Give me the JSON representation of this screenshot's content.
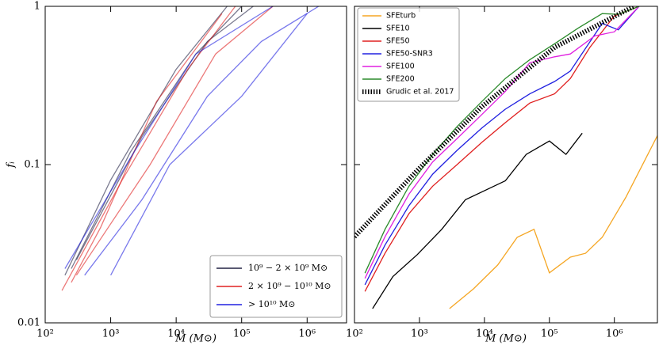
{
  "chart_data": [
    {
      "type": "line",
      "xlabel": "M (M⊙)",
      "ylabel": "fᵢ",
      "xlog": true,
      "ylog": true,
      "xlim": [
        100,
        4000000
      ],
      "ylim": [
        0.01,
        1
      ],
      "xticks": [
        {
          "value": 100,
          "label": "10²"
        },
        {
          "value": 1000,
          "label": "10³"
        },
        {
          "value": 10000,
          "label": "10⁴"
        },
        {
          "value": 100000,
          "label": "10⁵"
        },
        {
          "value": 1000000,
          "label": "10⁶"
        }
      ],
      "yticks": [
        0.01,
        0.1,
        1
      ],
      "legend": "lower right",
      "groups": [
        {
          "name": "10⁹ − 2 × 10⁹ M⊙",
          "color": "#222244",
          "lines": [
            {
              "x": [
                200,
                1000,
                10000,
                60000
              ],
              "values": [
                0.02,
                0.08,
                0.4,
                1
              ]
            },
            {
              "x": [
                250,
                2000,
                20000,
                100000
              ],
              "values": [
                0.022,
                0.12,
                0.5,
                1
              ]
            },
            {
              "x": [
                300,
                3000,
                30000,
                150000
              ],
              "values": [
                0.025,
                0.15,
                0.6,
                1
              ]
            }
          ]
        },
        {
          "name": "2 × 10⁹ − 10¹⁰ M⊙",
          "color": "#e02020",
          "lines": [
            {
              "x": [
                180,
                1500,
                15000,
                80000
              ],
              "values": [
                0.016,
                0.08,
                0.4,
                1
              ]
            },
            {
              "x": [
                300,
                4000,
                40000,
                300000
              ],
              "values": [
                0.02,
                0.1,
                0.5,
                1
              ]
            },
            {
              "x": [
                250,
                700,
                5000,
                50000
              ],
              "values": [
                0.018,
                0.04,
                0.25,
                0.9
              ]
            }
          ]
        },
        {
          "name": "> 10¹⁰ M⊙",
          "color": "#2020e0",
          "lines": [
            {
              "x": [
                400,
                3000,
                30000,
                200000,
                1500000
              ],
              "values": [
                0.02,
                0.06,
                0.27,
                0.6,
                1
              ]
            },
            {
              "x": [
                1000,
                8000,
                100000,
                1000000
              ],
              "values": [
                0.02,
                0.1,
                0.27,
                0.9
              ]
            },
            {
              "x": [
                200,
                2000,
                20000,
                300000
              ],
              "values": [
                0.022,
                0.11,
                0.5,
                1
              ]
            }
          ]
        }
      ]
    },
    {
      "type": "line",
      "xlabel": "M (M⊙)",
      "xlog": true,
      "ylog": true,
      "xlim": [
        100,
        4600000
      ],
      "ylim": [
        0.01,
        1
      ],
      "xticks": [
        {
          "value": 100,
          "label": "10²"
        },
        {
          "value": 1000,
          "label": "10³"
        },
        {
          "value": 10000,
          "label": "10⁴"
        },
        {
          "value": 100000,
          "label": "10⁵"
        },
        {
          "value": 1000000,
          "label": "10⁶"
        }
      ],
      "yticks": [
        0.01,
        0.1,
        1
      ],
      "legend": "upper left",
      "series": [
        {
          "name": "SFEturb",
          "color": "#f5a623",
          "x": [
            2900,
            6800,
            16000,
            32000,
            58000,
            100000,
            210000,
            360000,
            650000,
            1500000,
            4700000
          ],
          "values": [
            0.0123,
            0.0164,
            0.0232,
            0.0347,
            0.039,
            0.0207,
            0.026,
            0.0275,
            0.0347,
            0.062,
            0.155
          ]
        },
        {
          "name": "SFE10",
          "color": "#000000",
          "x": [
            190,
            390,
            930,
            2200,
            5100,
            10500,
            21000,
            44000,
            100000,
            180000,
            320000
          ],
          "values": [
            0.0123,
            0.0196,
            0.027,
            0.039,
            0.06,
            0.069,
            0.079,
            0.116,
            0.141,
            0.116,
            0.158
          ]
        },
        {
          "name": "SFE50",
          "color": "#e02020",
          "x": [
            145,
            295,
            690,
            1600,
            3800,
            9100,
            21000,
            50000,
            120000,
            210000,
            420000,
            1000000,
            2400000
          ],
          "values": [
            0.0158,
            0.0275,
            0.049,
            0.073,
            0.1,
            0.138,
            0.184,
            0.245,
            0.28,
            0.35,
            0.55,
            0.87,
            1
          ]
        },
        {
          "name": "SFE50-SNR3",
          "color": "#2020e0",
          "x": [
            145,
            295,
            690,
            1600,
            3800,
            9100,
            21000,
            50000,
            120000,
            210000,
            650000,
            1150000,
            2400000
          ],
          "values": [
            0.0174,
            0.031,
            0.055,
            0.087,
            0.123,
            0.17,
            0.224,
            0.28,
            0.335,
            0.39,
            0.78,
            0.71,
            1
          ]
        },
        {
          "name": "SFE100",
          "color": "#e020e0",
          "x": [
            145,
            295,
            690,
            1600,
            3800,
            9100,
            21000,
            50000,
            120000,
            210000,
            500000,
            1000000,
            2400000
          ],
          "values": [
            0.0191,
            0.035,
            0.065,
            0.104,
            0.146,
            0.207,
            0.29,
            0.44,
            0.48,
            0.5,
            0.65,
            0.69,
            1
          ]
        },
        {
          "name": "SFE200",
          "color": "#2a8a2a",
          "x": [
            145,
            295,
            690,
            1600,
            3800,
            9100,
            21000,
            50000,
            120000,
            280000,
            650000,
            1150000,
            2400000
          ],
          "values": [
            0.0206,
            0.039,
            0.073,
            0.116,
            0.174,
            0.25,
            0.35,
            0.46,
            0.58,
            0.73,
            0.9,
            0.89,
            1
          ]
        },
        {
          "name": "Grudic et al. 2017",
          "color": "#000000",
          "linestyle": "hatched",
          "x": [
            100,
            930,
            9100,
            120000,
            2000000
          ],
          "values": [
            0.035,
            0.092,
            0.232,
            0.55,
            1
          ]
        }
      ]
    }
  ]
}
